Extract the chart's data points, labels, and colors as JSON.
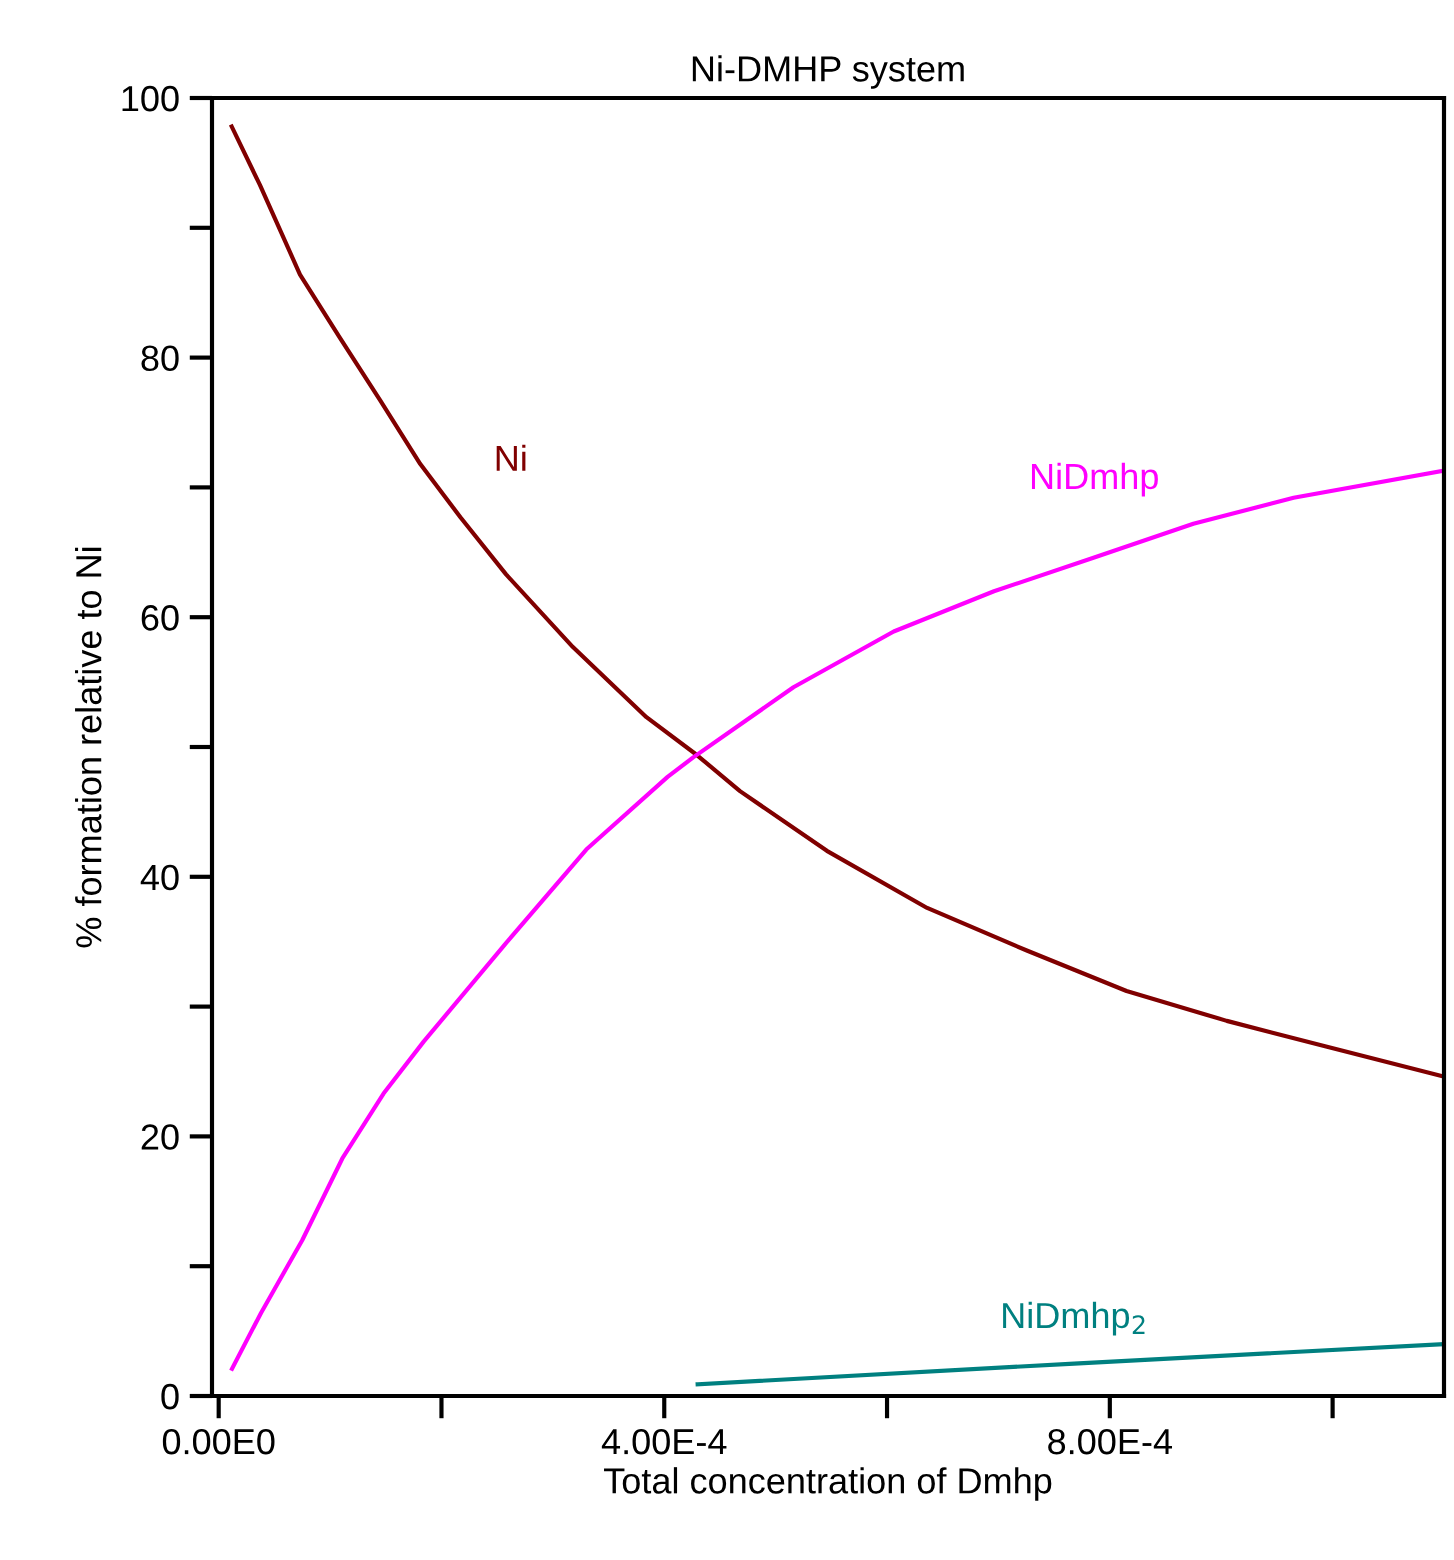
{
  "chart_data": {
    "type": "line",
    "title": "Ni-DMHP system",
    "xlabel": "Total concentration of Dmhp",
    "ylabel": "% formation relative to Ni",
    "xlim": [
      -6e-06,
      0.0011
    ],
    "ylim": [
      0,
      100
    ],
    "xticks": [
      {
        "value": 0,
        "label": "0.00E0"
      },
      {
        "value": 0.0002,
        "label": null
      },
      {
        "value": 0.0004,
        "label": "4.00E-4"
      },
      {
        "value": 0.0006,
        "label": null
      },
      {
        "value": 0.0008,
        "label": "8.00E-4"
      },
      {
        "value": 0.001,
        "label": null
      }
    ],
    "yticks": [
      0,
      {
        "value": 10,
        "label": null
      },
      20,
      {
        "value": 30,
        "label": null
      },
      40,
      {
        "value": 50,
        "label": null
      },
      60,
      {
        "value": 70,
        "label": null
      },
      80,
      {
        "value": 90,
        "label": null
      },
      100
    ],
    "grid": false,
    "legend": false,
    "marker": "none",
    "line_style": "solid",
    "series": [
      {
        "name": "Ni",
        "color": "#800000",
        "x": [
          1.17e-05,
          3.7e-05,
          7.3e-05,
          0.000109,
          0.000145,
          0.000181,
          0.000217,
          0.000258,
          0.000318,
          0.000384,
          0.000429,
          0.000468,
          0.000546,
          0.000636,
          0.000726,
          0.000815,
          0.000905,
          0.000995,
          0.0011
        ],
        "values": [
          97.8,
          93.3,
          86.4,
          81.5,
          76.7,
          71.8,
          67.7,
          63.3,
          57.7,
          52.3,
          49.4,
          46.6,
          42.0,
          37.6,
          34.3,
          31.2,
          28.9,
          26.9,
          24.6
        ]
      },
      {
        "name": "NiDmhp",
        "color": "#ff00ff",
        "x": [
          1.2e-05,
          3.8e-05,
          7.5e-05,
          0.000111,
          0.000148,
          0.000184,
          0.000257,
          0.00033,
          0.000403,
          0.000426,
          0.000516,
          0.000606,
          0.000696,
          0.000786,
          0.000875,
          0.000965,
          0.0011
        ],
        "values": [
          2.1,
          6.4,
          12.0,
          18.3,
          23.3,
          27.3,
          34.8,
          42.1,
          47.7,
          49.2,
          54.6,
          58.9,
          62.0,
          64.6,
          67.2,
          69.2,
          71.3
        ]
      },
      {
        "name": "NiDmhp$_{2}$",
        "color": "#008080",
        "x": [
          0.00043,
          0.000768,
          0.0011
        ],
        "values": [
          0.9,
          2.5,
          4.0
        ]
      }
    ]
  }
}
